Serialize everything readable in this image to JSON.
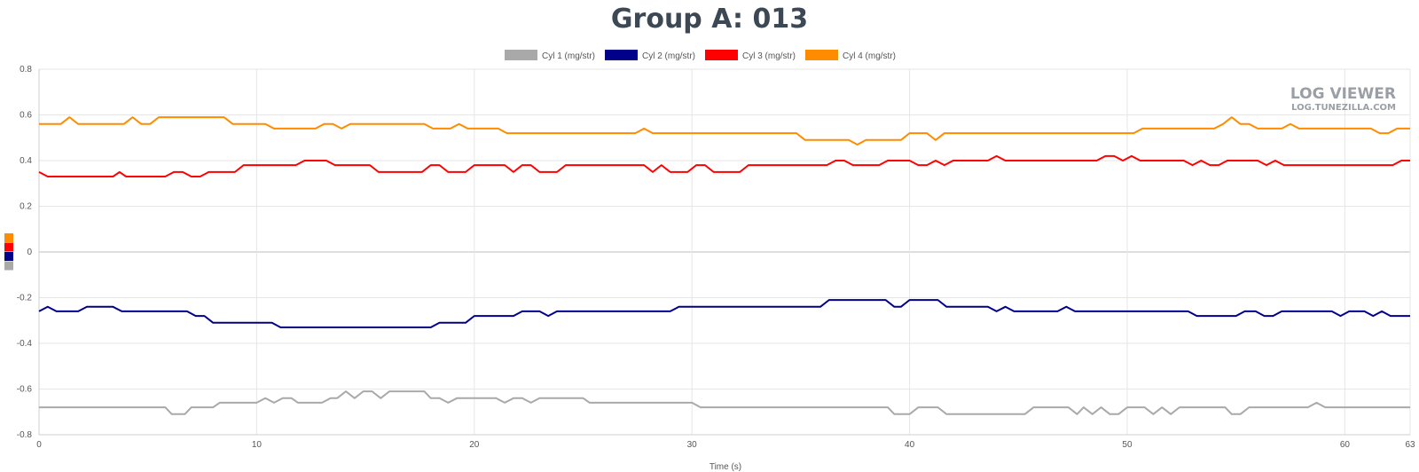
{
  "page": {
    "title": "Group A: 013"
  },
  "watermark": {
    "line1": "LOG VIEWER",
    "line2": "LOG.TUNEZILLA.COM"
  },
  "chart_data": {
    "type": "line",
    "title": "Group A: 013",
    "xlabel": "Time (s)",
    "ylabel": "",
    "xlim": [
      0,
      63
    ],
    "ylim": [
      -0.8,
      0.8
    ],
    "x_ticks": [
      0,
      10,
      20,
      30,
      40,
      50,
      60,
      63
    ],
    "y_ticks": [
      0.8,
      0.6,
      0.4,
      0.2,
      0,
      -0.2,
      -0.4,
      -0.6,
      -0.8
    ],
    "grid": true,
    "legend_position": "top-center",
    "series": [
      {
        "name": "Cyl 1 (mg/str)",
        "color": "#a9a9a9",
        "points": [
          [
            0,
            -0.68
          ],
          [
            5.8,
            -0.68
          ],
          [
            6.1,
            -0.71
          ],
          [
            6.7,
            -0.71
          ],
          [
            7,
            -0.68
          ],
          [
            8,
            -0.68
          ],
          [
            8.3,
            -0.66
          ],
          [
            10,
            -0.66
          ],
          [
            10.4,
            -0.64
          ],
          [
            10.8,
            -0.66
          ],
          [
            11.2,
            -0.64
          ],
          [
            11.6,
            -0.64
          ],
          [
            11.9,
            -0.66
          ],
          [
            13,
            -0.66
          ],
          [
            13.4,
            -0.64
          ],
          [
            13.7,
            -0.64
          ],
          [
            14.1,
            -0.61
          ],
          [
            14.5,
            -0.64
          ],
          [
            14.9,
            -0.61
          ],
          [
            15.3,
            -0.61
          ],
          [
            15.7,
            -0.64
          ],
          [
            16.1,
            -0.61
          ],
          [
            17.7,
            -0.61
          ],
          [
            18,
            -0.64
          ],
          [
            18.4,
            -0.64
          ],
          [
            18.8,
            -0.66
          ],
          [
            19.2,
            -0.64
          ],
          [
            21,
            -0.64
          ],
          [
            21.4,
            -0.66
          ],
          [
            21.8,
            -0.64
          ],
          [
            22.2,
            -0.64
          ],
          [
            22.6,
            -0.66
          ],
          [
            23,
            -0.64
          ],
          [
            25,
            -0.64
          ],
          [
            25.3,
            -0.66
          ],
          [
            30,
            -0.66
          ],
          [
            30.4,
            -0.68
          ],
          [
            39,
            -0.68
          ],
          [
            39.3,
            -0.71
          ],
          [
            40,
            -0.71
          ],
          [
            40.4,
            -0.68
          ],
          [
            41.3,
            -0.68
          ],
          [
            41.7,
            -0.71
          ],
          [
            45.3,
            -0.71
          ],
          [
            45.7,
            -0.68
          ],
          [
            47.3,
            -0.68
          ],
          [
            47.7,
            -0.71
          ],
          [
            48,
            -0.68
          ],
          [
            48.4,
            -0.71
          ],
          [
            48.8,
            -0.68
          ],
          [
            49.2,
            -0.71
          ],
          [
            49.6,
            -0.71
          ],
          [
            50,
            -0.68
          ],
          [
            50.8,
            -0.68
          ],
          [
            51.2,
            -0.71
          ],
          [
            51.6,
            -0.68
          ],
          [
            52,
            -0.71
          ],
          [
            52.4,
            -0.68
          ],
          [
            54.5,
            -0.68
          ],
          [
            54.8,
            -0.71
          ],
          [
            55.2,
            -0.71
          ],
          [
            55.6,
            -0.68
          ],
          [
            58.3,
            -0.68
          ],
          [
            58.7,
            -0.66
          ],
          [
            59.1,
            -0.68
          ],
          [
            63,
            -0.68
          ]
        ]
      },
      {
        "name": "Cyl 2 (mg/str)",
        "color": "#00008b",
        "points": [
          [
            0,
            -0.26
          ],
          [
            0.4,
            -0.24
          ],
          [
            0.8,
            -0.26
          ],
          [
            1.8,
            -0.26
          ],
          [
            2.2,
            -0.24
          ],
          [
            3.4,
            -0.24
          ],
          [
            3.8,
            -0.26
          ],
          [
            6.8,
            -0.26
          ],
          [
            7.2,
            -0.28
          ],
          [
            7.6,
            -0.28
          ],
          [
            8,
            -0.31
          ],
          [
            10.7,
            -0.31
          ],
          [
            11.1,
            -0.33
          ],
          [
            18,
            -0.33
          ],
          [
            18.4,
            -0.31
          ],
          [
            19.6,
            -0.31
          ],
          [
            20,
            -0.28
          ],
          [
            21.8,
            -0.28
          ],
          [
            22.2,
            -0.26
          ],
          [
            23,
            -0.26
          ],
          [
            23.4,
            -0.28
          ],
          [
            23.8,
            -0.26
          ],
          [
            29,
            -0.26
          ],
          [
            29.4,
            -0.24
          ],
          [
            35.9,
            -0.24
          ],
          [
            36.3,
            -0.21
          ],
          [
            38.9,
            -0.21
          ],
          [
            39.3,
            -0.24
          ],
          [
            39.6,
            -0.24
          ],
          [
            40,
            -0.21
          ],
          [
            41.3,
            -0.21
          ],
          [
            41.7,
            -0.24
          ],
          [
            43.6,
            -0.24
          ],
          [
            44,
            -0.26
          ],
          [
            44.4,
            -0.24
          ],
          [
            44.8,
            -0.26
          ],
          [
            46.8,
            -0.26
          ],
          [
            47.2,
            -0.24
          ],
          [
            47.6,
            -0.26
          ],
          [
            52.8,
            -0.26
          ],
          [
            53.2,
            -0.28
          ],
          [
            55,
            -0.28
          ],
          [
            55.4,
            -0.26
          ],
          [
            55.9,
            -0.26
          ],
          [
            56.3,
            -0.28
          ],
          [
            56.7,
            -0.28
          ],
          [
            57.1,
            -0.26
          ],
          [
            59.4,
            -0.26
          ],
          [
            59.8,
            -0.28
          ],
          [
            60.2,
            -0.26
          ],
          [
            60.9,
            -0.26
          ],
          [
            61.3,
            -0.28
          ],
          [
            61.7,
            -0.26
          ],
          [
            62.1,
            -0.28
          ],
          [
            63,
            -0.28
          ]
        ]
      },
      {
        "name": "Cyl 3 (mg/str)",
        "color": "#ff0000",
        "points": [
          [
            0,
            0.35
          ],
          [
            0.4,
            0.33
          ],
          [
            3.4,
            0.33
          ],
          [
            3.7,
            0.35
          ],
          [
            4,
            0.33
          ],
          [
            5.8,
            0.33
          ],
          [
            6.2,
            0.35
          ],
          [
            6.6,
            0.35
          ],
          [
            7,
            0.33
          ],
          [
            7.4,
            0.33
          ],
          [
            7.8,
            0.35
          ],
          [
            9,
            0.35
          ],
          [
            9.4,
            0.38
          ],
          [
            11.8,
            0.38
          ],
          [
            12.2,
            0.4
          ],
          [
            13.2,
            0.4
          ],
          [
            13.6,
            0.38
          ],
          [
            15.2,
            0.38
          ],
          [
            15.6,
            0.35
          ],
          [
            17.6,
            0.35
          ],
          [
            18,
            0.38
          ],
          [
            18.4,
            0.38
          ],
          [
            18.8,
            0.35
          ],
          [
            19.6,
            0.35
          ],
          [
            20,
            0.38
          ],
          [
            21.4,
            0.38
          ],
          [
            21.8,
            0.35
          ],
          [
            22.2,
            0.38
          ],
          [
            22.6,
            0.38
          ],
          [
            23,
            0.35
          ],
          [
            23.8,
            0.35
          ],
          [
            24.2,
            0.38
          ],
          [
            27.8,
            0.38
          ],
          [
            28.2,
            0.35
          ],
          [
            28.6,
            0.38
          ],
          [
            29,
            0.35
          ],
          [
            29.8,
            0.35
          ],
          [
            30.2,
            0.38
          ],
          [
            30.6,
            0.38
          ],
          [
            31,
            0.35
          ],
          [
            32.2,
            0.35
          ],
          [
            32.6,
            0.38
          ],
          [
            36.2,
            0.38
          ],
          [
            36.6,
            0.4
          ],
          [
            37,
            0.4
          ],
          [
            37.4,
            0.38
          ],
          [
            38.6,
            0.38
          ],
          [
            39,
            0.4
          ],
          [
            40,
            0.4
          ],
          [
            40.4,
            0.38
          ],
          [
            40.8,
            0.38
          ],
          [
            41.2,
            0.4
          ],
          [
            41.6,
            0.38
          ],
          [
            42,
            0.4
          ],
          [
            43.6,
            0.4
          ],
          [
            44,
            0.42
          ],
          [
            44.4,
            0.4
          ],
          [
            48.6,
            0.4
          ],
          [
            49,
            0.42
          ],
          [
            49.4,
            0.42
          ],
          [
            49.8,
            0.4
          ],
          [
            50.2,
            0.42
          ],
          [
            50.6,
            0.4
          ],
          [
            52.6,
            0.4
          ],
          [
            53,
            0.38
          ],
          [
            53.4,
            0.4
          ],
          [
            53.8,
            0.38
          ],
          [
            54.2,
            0.38
          ],
          [
            54.6,
            0.4
          ],
          [
            56,
            0.4
          ],
          [
            56.4,
            0.38
          ],
          [
            56.8,
            0.4
          ],
          [
            57.2,
            0.38
          ],
          [
            62.2,
            0.38
          ],
          [
            62.6,
            0.4
          ],
          [
            63,
            0.4
          ]
        ]
      },
      {
        "name": "Cyl 4 (mg/str)",
        "color": "#ff8c00",
        "points": [
          [
            0,
            0.56
          ],
          [
            1,
            0.56
          ],
          [
            1.4,
            0.59
          ],
          [
            1.8,
            0.56
          ],
          [
            3.9,
            0.56
          ],
          [
            4.3,
            0.59
          ],
          [
            4.7,
            0.56
          ],
          [
            5.1,
            0.56
          ],
          [
            5.5,
            0.59
          ],
          [
            8.5,
            0.59
          ],
          [
            8.9,
            0.56
          ],
          [
            10.4,
            0.56
          ],
          [
            10.8,
            0.54
          ],
          [
            12.7,
            0.54
          ],
          [
            13.1,
            0.56
          ],
          [
            13.5,
            0.56
          ],
          [
            13.9,
            0.54
          ],
          [
            14.3,
            0.56
          ],
          [
            17.7,
            0.56
          ],
          [
            18.1,
            0.54
          ],
          [
            18.9,
            0.54
          ],
          [
            19.3,
            0.56
          ],
          [
            19.7,
            0.54
          ],
          [
            21.1,
            0.54
          ],
          [
            21.5,
            0.52
          ],
          [
            27.4,
            0.52
          ],
          [
            27.8,
            0.54
          ],
          [
            28.2,
            0.52
          ],
          [
            34.8,
            0.52
          ],
          [
            35.2,
            0.49
          ],
          [
            37.2,
            0.49
          ],
          [
            37.6,
            0.47
          ],
          [
            38,
            0.49
          ],
          [
            39.6,
            0.49
          ],
          [
            40,
            0.52
          ],
          [
            40.8,
            0.52
          ],
          [
            41.2,
            0.49
          ],
          [
            41.6,
            0.52
          ],
          [
            50.3,
            0.52
          ],
          [
            50.7,
            0.54
          ],
          [
            54,
            0.54
          ],
          [
            54.4,
            0.56
          ],
          [
            54.8,
            0.59
          ],
          [
            55.2,
            0.56
          ],
          [
            55.6,
            0.56
          ],
          [
            56,
            0.54
          ],
          [
            57.1,
            0.54
          ],
          [
            57.5,
            0.56
          ],
          [
            57.9,
            0.54
          ],
          [
            61.2,
            0.54
          ],
          [
            61.6,
            0.52
          ],
          [
            62,
            0.52
          ],
          [
            62.4,
            0.54
          ],
          [
            63,
            0.54
          ]
        ]
      }
    ]
  }
}
